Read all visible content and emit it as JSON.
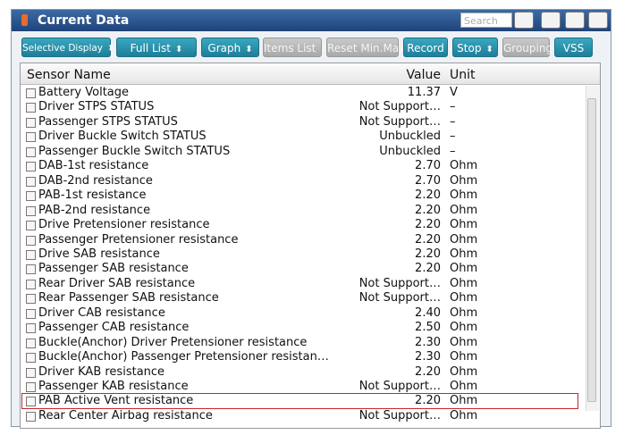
{
  "header": {
    "title": "Current Data",
    "search_placeholder": "Search"
  },
  "toolbar": [
    {
      "label": "Selective Display",
      "enabled": true,
      "dropdown": true
    },
    {
      "label": "Full List",
      "enabled": true,
      "dropdown": true
    },
    {
      "label": "Graph",
      "enabled": true,
      "dropdown": true
    },
    {
      "label": "Items List",
      "enabled": false,
      "dropdown": true
    },
    {
      "label": "Reset Min.Max",
      "enabled": false,
      "dropdown": false
    },
    {
      "label": "Record",
      "enabled": true,
      "dropdown": false
    },
    {
      "label": "Stop",
      "enabled": true,
      "dropdown": true
    },
    {
      "label": "Grouping",
      "enabled": false,
      "dropdown": false
    },
    {
      "label": "VSS",
      "enabled": true,
      "dropdown": false
    }
  ],
  "table": {
    "columns": [
      "Sensor Name",
      "Value",
      "Unit"
    ],
    "rows": [
      [
        "Battery Voltage",
        "11.37",
        "V"
      ],
      [
        "Driver STPS STATUS",
        "Not Support…",
        "–"
      ],
      [
        "Passenger STPS STATUS",
        "Not Support…",
        "–"
      ],
      [
        "Driver Buckle Switch STATUS",
        "Unbuckled",
        "–"
      ],
      [
        "Passenger Buckle Switch STATUS",
        "Unbuckled",
        "–"
      ],
      [
        "DAB-1st resistance",
        "2.70",
        "Ohm"
      ],
      [
        "DAB-2nd resistance",
        "2.70",
        "Ohm"
      ],
      [
        "PAB-1st resistance",
        "2.20",
        "Ohm"
      ],
      [
        "PAB-2nd resistance",
        "2.20",
        "Ohm"
      ],
      [
        "Drive Pretensioner resistance",
        "2.20",
        "Ohm"
      ],
      [
        "Passenger Pretensioner resistance",
        "2.20",
        "Ohm"
      ],
      [
        "Drive SAB resistance",
        "2.20",
        "Ohm"
      ],
      [
        "Passenger SAB resistance",
        "2.20",
        "Ohm"
      ],
      [
        "Rear Driver SAB resistance",
        "Not Support…",
        "Ohm"
      ],
      [
        "Rear Passenger SAB resistance",
        "Not Support…",
        "Ohm"
      ],
      [
        "Driver CAB resistance",
        "2.40",
        "Ohm"
      ],
      [
        "Passenger CAB resistance",
        "2.50",
        "Ohm"
      ],
      [
        "Buckle(Anchor) Driver Pretensioner resistance",
        "2.30",
        "Ohm"
      ],
      [
        "Buckle(Anchor) Passenger Pretensioner resistan…",
        "2.30",
        "Ohm"
      ],
      [
        "Driver KAB resistance",
        "2.20",
        "Ohm"
      ],
      [
        "Passenger KAB resistance",
        "Not Support…",
        "Ohm"
      ],
      [
        "PAB Active Vent resistance",
        "2.20",
        "Ohm"
      ],
      [
        "Rear Center Airbag resistance",
        "Not Support…",
        "Ohm"
      ]
    ],
    "highlighted_row": 21
  }
}
